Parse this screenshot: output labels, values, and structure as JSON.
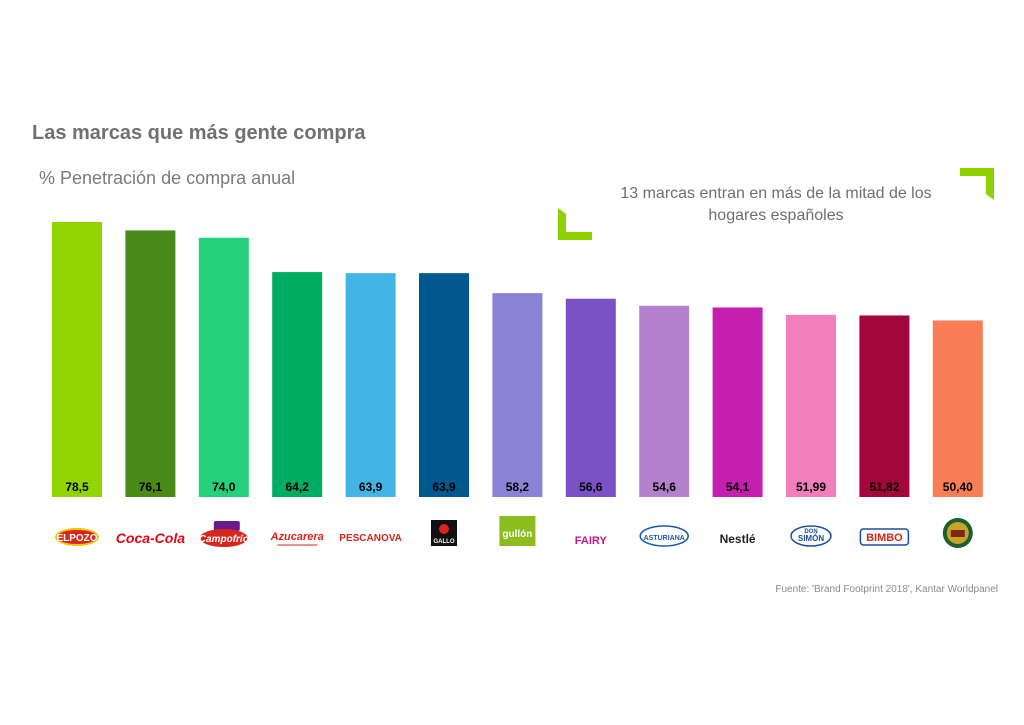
{
  "title": "Las marcas que más gente compra",
  "subtitle": "% Penetración de compra anual",
  "callout": "13 marcas entran en más de la mitad de los hogares españoles",
  "source": "Fuente: 'Brand Footprint 2018', Kantar Worldpanel",
  "accent_color": "#8cd200",
  "chart_data": {
    "type": "bar",
    "categories": [
      "ELPOZO",
      "Coca-Cola",
      "Campofrío",
      "Azucarera",
      "PESCANOVA",
      "GALLO",
      "gullón",
      "FAIRY",
      "ASTURIANA",
      "Nestlé",
      "DON SIMÓN",
      "BIMBO",
      "La Española"
    ],
    "values": [
      78.5,
      76.1,
      74.0,
      64.2,
      63.9,
      63.9,
      58.2,
      56.6,
      54.6,
      54.1,
      51.99,
      51.82,
      50.4
    ],
    "value_labels": [
      "78,5",
      "76,1",
      "74,0",
      "64,2",
      "63,9",
      "63,9",
      "58,2",
      "56,6",
      "54,6",
      "54,1",
      "51,99",
      "51,82",
      "50,40"
    ],
    "colors": [
      "#92d400",
      "#4b8a18",
      "#24d07a",
      "#00ab62",
      "#42b5e6",
      "#00588f",
      "#8b84d6",
      "#7b52c6",
      "#b482cc",
      "#c51fb0",
      "#f07fbc",
      "#a3063b",
      "#f87e55"
    ],
    "title": "Las marcas que más gente compra",
    "ylabel": "% Penetración de compra anual",
    "xlabel": "",
    "ylim": [
      0,
      80
    ],
    "grid": false,
    "legend": "none"
  }
}
